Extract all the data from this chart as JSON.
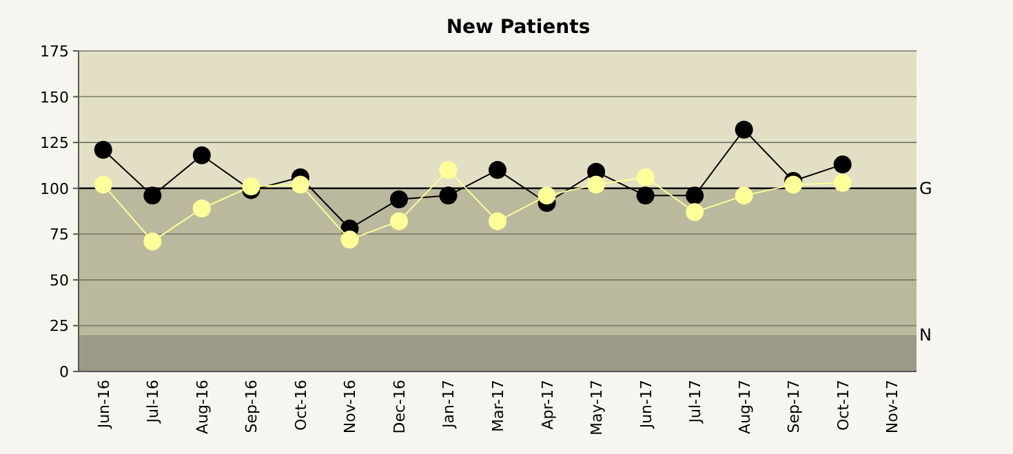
{
  "chart_data": {
    "type": "line",
    "title": "New Patients",
    "categories": [
      "Jun-16",
      "Jul-16",
      "Aug-16",
      "Sep-16",
      "Oct-16",
      "Nov-16",
      "Dec-16",
      "Jan-17",
      "Mar-17",
      "Apr-17",
      "May-17",
      "Jun-17",
      "Jul-17",
      "Aug-17",
      "Sep-17",
      "Oct-17",
      "Nov-17"
    ],
    "series": [
      {
        "color": "#000000",
        "values": [
          121,
          96,
          118,
          99,
          106,
          78,
          94,
          96,
          110,
          92,
          109,
          96,
          96,
          132,
          104,
          113,
          null
        ]
      },
      {
        "color": "#ffff99",
        "values": [
          102,
          71,
          89,
          101,
          102,
          72,
          82,
          110,
          82,
          96,
          102,
          106,
          87,
          96,
          102,
          103,
          null
        ]
      }
    ],
    "ylim": [
      0,
      175
    ],
    "yticks": [
      0,
      25,
      50,
      75,
      100,
      125,
      150,
      175
    ],
    "grid": "y",
    "marker": "circle",
    "line_style": "solid",
    "bands": [
      {
        "axis": "y",
        "from": 0,
        "to": 20,
        "label": "N",
        "color": "#9c9a87"
      },
      {
        "axis": "y",
        "from": 20,
        "to": 100,
        "color": "#bbb99d"
      },
      {
        "axis": "y",
        "from": 100,
        "to": 175,
        "color": "#e3dfc5"
      }
    ],
    "ref_lines": [
      {
        "axis": "y",
        "value": 100,
        "label": "G",
        "color": "#000000"
      }
    ]
  }
}
